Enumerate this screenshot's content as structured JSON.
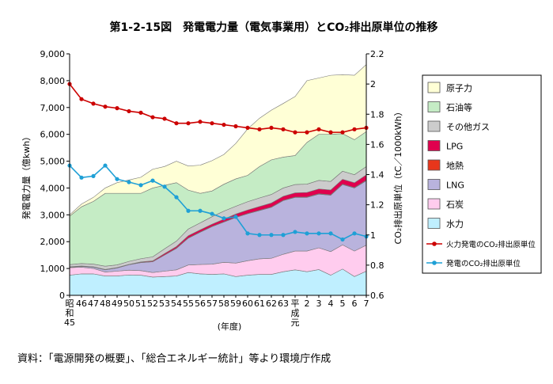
{
  "chart_data": {
    "type": "area",
    "title": "第1-2-15図　発電電力量（電気事業用）とCO₂排出原単位の推移",
    "source": "資料：「電源開発の概要」、「総合エネルギー統計」等より環境庁作成",
    "xlabel": "(年度)",
    "ylabel_left": "発電電力量（億kwh）",
    "ylabel_right": "CO₂排出原単位（tC／1000kWh）",
    "ylim_left": [
      0,
      9000
    ],
    "ylim_right": [
      0.6,
      2.2
    ],
    "yticks_left": [
      "0",
      "1,000",
      "2,000",
      "3,000",
      "4,000",
      "5,000",
      "6,000",
      "7,000",
      "8,000",
      "9,000"
    ],
    "yticks_right": [
      "0.6",
      "0.8",
      "1",
      "1.2",
      "1.4",
      "1.6",
      "1.8",
      "2",
      "2.2"
    ],
    "x_labels": [
      [
        "昭",
        "和",
        "45"
      ],
      [
        "46"
      ],
      [
        "47"
      ],
      [
        "48"
      ],
      [
        "49"
      ],
      [
        "50"
      ],
      [
        "51"
      ],
      [
        "52"
      ],
      [
        "53"
      ],
      [
        "54"
      ],
      [
        "55"
      ],
      [
        "56"
      ],
      [
        "57"
      ],
      [
        "58"
      ],
      [
        "59"
      ],
      [
        "60"
      ],
      [
        "61"
      ],
      [
        "62"
      ],
      [
        "63"
      ],
      [
        "平",
        "成",
        "元"
      ],
      [
        "2"
      ],
      [
        "3"
      ],
      [
        "4"
      ],
      [
        "5"
      ],
      [
        "6"
      ],
      [
        "7"
      ]
    ],
    "stacked_series": [
      {
        "name": "水力",
        "color": "#bfefff",
        "values": [
          750,
          800,
          800,
          720,
          720,
          760,
          750,
          680,
          700,
          720,
          850,
          800,
          780,
          800,
          700,
          750,
          780,
          780,
          880,
          950,
          880,
          960,
          750,
          980,
          700,
          900
        ]
      },
      {
        "name": "石炭",
        "color": "#ffccee",
        "values": [
          280,
          250,
          200,
          150,
          180,
          180,
          170,
          170,
          200,
          230,
          280,
          350,
          380,
          430,
          500,
          540,
          580,
          600,
          650,
          700,
          770,
          810,
          880,
          900,
          950,
          970
        ]
      },
      {
        "name": "LNG",
        "color": "#b9b3dd",
        "values": [
          20,
          30,
          50,
          80,
          120,
          200,
          300,
          400,
          600,
          800,
          1000,
          1200,
          1400,
          1500,
          1700,
          1750,
          1800,
          1900,
          2000,
          2000,
          2000,
          2000,
          2100,
          2250,
          2350,
          2400
        ]
      },
      {
        "name": "地熱",
        "color": "#e8361b",
        "values": [
          5,
          5,
          5,
          5,
          5,
          5,
          5,
          5,
          5,
          10,
          10,
          10,
          10,
          10,
          10,
          10,
          10,
          10,
          10,
          10,
          15,
          15,
          15,
          15,
          15,
          20
        ]
      },
      {
        "name": "LPG",
        "color": "#e0004e",
        "values": [
          10,
          10,
          10,
          10,
          10,
          10,
          20,
          30,
          50,
          60,
          80,
          80,
          80,
          100,
          120,
          130,
          140,
          150,
          150,
          160,
          170,
          180,
          180,
          180,
          180,
          200
        ]
      },
      {
        "name": "その他ガス",
        "color": "#cccccc",
        "values": [
          80,
          90,
          100,
          120,
          100,
          110,
          120,
          150,
          180,
          200,
          250,
          260,
          280,
          300,
          290,
          310,
          320,
          320,
          310,
          310,
          310,
          320,
          320,
          300,
          300,
          310
        ]
      },
      {
        "name": "石油等",
        "color": "#c5ecc5",
        "values": [
          1805,
          2115,
          2335,
          2715,
          2665,
          2535,
          2435,
          2565,
          2365,
          2180,
          1450,
          1100,
          960,
          1000,
          1020,
          980,
          1170,
          1290,
          1150,
          1080,
          1555,
          1715,
          1755,
          1400,
          1305,
          1300
        ]
      },
      {
        "name": "原子力",
        "color": "#ffffd6",
        "values": [
          50,
          100,
          150,
          200,
          400,
          500,
          600,
          700,
          700,
          800,
          900,
          1050,
          1130,
          1110,
          1320,
          1730,
          1800,
          1850,
          2000,
          2200,
          2300,
          2100,
          2200,
          2200,
          2400,
          2500
        ]
      }
    ],
    "line_series": [
      {
        "name": "火力発電のCO₂排出原単位",
        "color": "#cc0000",
        "axis": "right",
        "values": [
          2.0,
          1.9,
          1.87,
          1.85,
          1.84,
          1.82,
          1.81,
          1.78,
          1.77,
          1.74,
          1.74,
          1.75,
          1.74,
          1.73,
          1.72,
          1.71,
          1.7,
          1.71,
          1.7,
          1.68,
          1.68,
          1.7,
          1.68,
          1.68,
          1.7,
          1.71
        ]
      },
      {
        "name": "発電のCO₂排出原単位",
        "color": "#1fa0d6",
        "axis": "right",
        "values": [
          1.46,
          1.38,
          1.39,
          1.46,
          1.37,
          1.35,
          1.33,
          1.36,
          1.32,
          1.25,
          1.16,
          1.16,
          1.14,
          1.11,
          1.12,
          1.01,
          1.0,
          1.0,
          1.0,
          1.02,
          1.01,
          1.01,
          1.01,
          0.97,
          1.01,
          0.99
        ]
      }
    ],
    "legend_position": "right",
    "legend_order": [
      "原子力",
      "石油等",
      "その他ガス",
      "LPG",
      "地熱",
      "LNG",
      "石炭",
      "水力",
      "火力発電のCO₂排出原単位",
      "発電のCO₂排出原単位"
    ],
    "grid": false
  }
}
